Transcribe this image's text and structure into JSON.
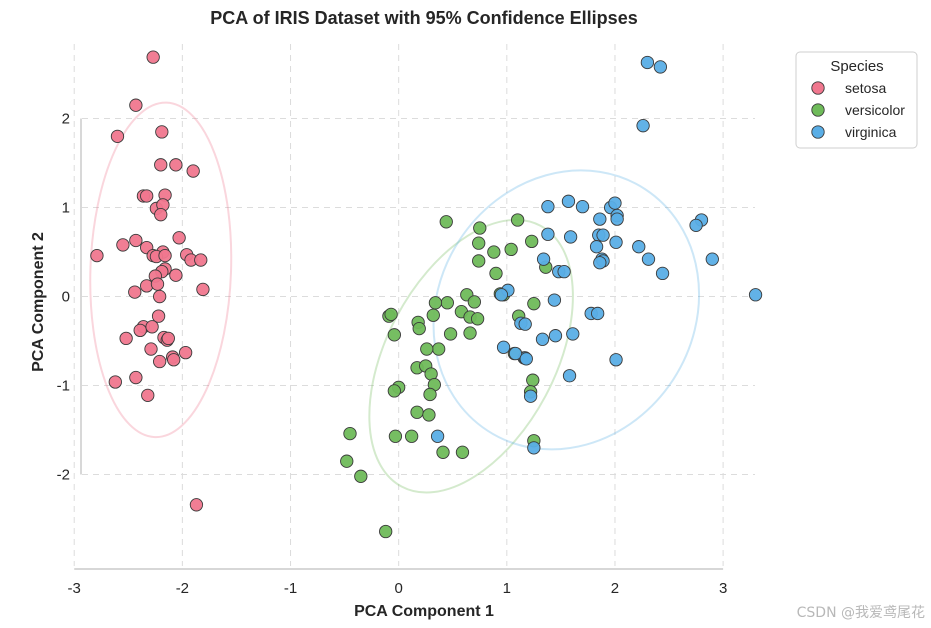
{
  "watermark": "CSDN @我爱鸢尾花",
  "chart_data": {
    "type": "scatter",
    "title": "PCA of IRIS Dataset with 95% Confidence Ellipses",
    "xlabel": "PCA Component 1",
    "ylabel": "PCA Component 2",
    "xlim": [
      -3.15,
      3.6
    ],
    "ylim": [
      -3.05,
      2.95
    ],
    "xticks": [
      -3,
      -2,
      -1,
      0,
      1,
      2,
      3
    ],
    "yticks": [
      -2,
      -1,
      0,
      1,
      2
    ],
    "xtick_labels": [
      "-3",
      "-2",
      "-1",
      "0",
      "1",
      "2",
      "3"
    ],
    "ytick_labels": [
      "-2",
      "-1",
      "0",
      "1",
      "2"
    ],
    "grid": true,
    "legend": {
      "title": "Species",
      "placement": "outside top-right"
    },
    "series": [
      {
        "name": "setosa",
        "color": "#f0778e",
        "ellipse": {
          "cx": -2.2,
          "cy": 0.3,
          "rx": 0.65,
          "ry": 1.88,
          "angle_deg": 2
        },
        "points": [
          [
            -2.27,
            2.69
          ],
          [
            -2.43,
            2.15
          ],
          [
            -2.6,
            1.8
          ],
          [
            -2.19,
            1.85
          ],
          [
            -2.2,
            1.48
          ],
          [
            -2.06,
            1.48
          ],
          [
            -1.9,
            1.41
          ],
          [
            -2.36,
            1.13
          ],
          [
            -2.33,
            1.13
          ],
          [
            -2.16,
            1.14
          ],
          [
            -2.24,
            0.99
          ],
          [
            -2.18,
            1.03
          ],
          [
            -2.2,
            0.92
          ],
          [
            -2.03,
            0.66
          ],
          [
            -2.43,
            0.63
          ],
          [
            -2.55,
            0.58
          ],
          [
            -2.33,
            0.55
          ],
          [
            -2.18,
            0.5
          ],
          [
            -2.27,
            0.46
          ],
          [
            -2.24,
            0.45
          ],
          [
            -2.16,
            0.46
          ],
          [
            -1.96,
            0.47
          ],
          [
            -1.92,
            0.41
          ],
          [
            -1.83,
            0.41
          ],
          [
            -2.79,
            0.46
          ],
          [
            -2.16,
            0.31
          ],
          [
            -2.19,
            0.28
          ],
          [
            -2.06,
            0.24
          ],
          [
            -2.25,
            0.23
          ],
          [
            -2.33,
            0.12
          ],
          [
            -2.23,
            0.14
          ],
          [
            -2.44,
            0.05
          ],
          [
            -2.21,
            0.0
          ],
          [
            -1.81,
            0.08
          ],
          [
            -2.36,
            -0.34
          ],
          [
            -2.39,
            -0.38
          ],
          [
            -2.22,
            -0.22
          ],
          [
            -2.28,
            -0.34
          ],
          [
            -2.52,
            -0.47
          ],
          [
            -2.17,
            -0.46
          ],
          [
            -2.14,
            -0.49
          ],
          [
            -2.13,
            -0.47
          ],
          [
            -2.29,
            -0.59
          ],
          [
            -1.97,
            -0.63
          ],
          [
            -2.09,
            -0.68
          ],
          [
            -2.08,
            -0.71
          ],
          [
            -2.21,
            -0.73
          ],
          [
            -2.43,
            -0.91
          ],
          [
            -2.62,
            -0.96
          ],
          [
            -2.32,
            -1.11
          ],
          [
            -1.87,
            -2.34
          ]
        ]
      },
      {
        "name": "versicolor",
        "color": "#6fbb5a",
        "ellipse": {
          "cx": 0.67,
          "cy": -0.67,
          "rx": 0.78,
          "ry": 1.66,
          "angle_deg": 28
        },
        "points": [
          [
            0.44,
            0.84
          ],
          [
            0.75,
            0.77
          ],
          [
            1.1,
            0.86
          ],
          [
            0.74,
            0.6
          ],
          [
            0.88,
            0.5
          ],
          [
            1.04,
            0.53
          ],
          [
            1.23,
            0.62
          ],
          [
            1.36,
            0.33
          ],
          [
            0.74,
            0.4
          ],
          [
            0.9,
            0.26
          ],
          [
            0.63,
            0.02
          ],
          [
            0.7,
            -0.06
          ],
          [
            0.45,
            -0.07
          ],
          [
            0.34,
            -0.07
          ],
          [
            0.94,
            0.03
          ],
          [
            0.97,
            0.02
          ],
          [
            1.25,
            -0.08
          ],
          [
            -0.09,
            -0.22
          ],
          [
            -0.07,
            -0.2
          ],
          [
            0.32,
            -0.21
          ],
          [
            0.18,
            -0.29
          ],
          [
            0.58,
            -0.17
          ],
          [
            0.66,
            -0.23
          ],
          [
            0.73,
            -0.25
          ],
          [
            1.11,
            -0.22
          ],
          [
            0.19,
            -0.36
          ],
          [
            0.66,
            -0.41
          ],
          [
            0.48,
            -0.42
          ],
          [
            -0.04,
            -0.43
          ],
          [
            0.37,
            -0.59
          ],
          [
            0.26,
            -0.59
          ],
          [
            1.07,
            -0.64
          ],
          [
            0.17,
            -0.8
          ],
          [
            0.25,
            -0.78
          ],
          [
            0.3,
            -0.87
          ],
          [
            1.24,
            -0.94
          ],
          [
            0.33,
            -0.99
          ],
          [
            0.0,
            -1.02
          ],
          [
            -0.04,
            -1.06
          ],
          [
            0.29,
            -1.1
          ],
          [
            1.22,
            -1.07
          ],
          [
            0.17,
            -1.3
          ],
          [
            0.28,
            -1.33
          ],
          [
            1.25,
            -1.62
          ],
          [
            0.59,
            -1.75
          ],
          [
            0.41,
            -1.75
          ],
          [
            -0.03,
            -1.57
          ],
          [
            0.12,
            -1.57
          ],
          [
            -0.45,
            -1.54
          ],
          [
            -0.48,
            -1.85
          ],
          [
            -0.35,
            -2.02
          ],
          [
            -0.12,
            -2.64
          ]
        ]
      },
      {
        "name": "virginica",
        "color": "#5aaee6",
        "ellipse": {
          "cx": 1.55,
          "cy": -0.15,
          "rx": 1.18,
          "ry": 1.62,
          "angle_deg": 33
        },
        "points": [
          [
            2.3,
            2.63
          ],
          [
            2.42,
            2.58
          ],
          [
            2.26,
            1.92
          ],
          [
            1.57,
            1.07
          ],
          [
            1.38,
            1.01
          ],
          [
            1.7,
            1.01
          ],
          [
            1.96,
            1.0
          ],
          [
            2.0,
            1.05
          ],
          [
            2.02,
            0.91
          ],
          [
            2.02,
            0.87
          ],
          [
            1.86,
            0.87
          ],
          [
            2.8,
            0.86
          ],
          [
            2.75,
            0.8
          ],
          [
            1.85,
            0.69
          ],
          [
            1.89,
            0.69
          ],
          [
            1.59,
            0.67
          ],
          [
            1.38,
            0.7
          ],
          [
            2.01,
            0.61
          ],
          [
            2.22,
            0.56
          ],
          [
            1.83,
            0.56
          ],
          [
            1.88,
            0.42
          ],
          [
            1.89,
            0.4
          ],
          [
            1.86,
            0.38
          ],
          [
            2.31,
            0.42
          ],
          [
            2.9,
            0.42
          ],
          [
            1.34,
            0.42
          ],
          [
            1.48,
            0.28
          ],
          [
            1.53,
            0.28
          ],
          [
            2.44,
            0.26
          ],
          [
            3.3,
            0.02
          ],
          [
            1.01,
            0.07
          ],
          [
            0.95,
            0.02
          ],
          [
            1.44,
            -0.04
          ],
          [
            1.78,
            -0.19
          ],
          [
            1.84,
            -0.19
          ],
          [
            1.13,
            -0.3
          ],
          [
            1.17,
            -0.31
          ],
          [
            1.45,
            -0.44
          ],
          [
            1.61,
            -0.42
          ],
          [
            1.33,
            -0.48
          ],
          [
            0.97,
            -0.57
          ],
          [
            1.16,
            -0.69
          ],
          [
            1.17,
            -0.69
          ],
          [
            2.01,
            -0.71
          ],
          [
            1.58,
            -0.89
          ],
          [
            1.22,
            -1.12
          ],
          [
            1.25,
            -1.7
          ],
          [
            0.36,
            -1.57
          ],
          [
            1.08,
            -0.64
          ],
          [
            1.18,
            -0.7
          ]
        ]
      }
    ]
  }
}
